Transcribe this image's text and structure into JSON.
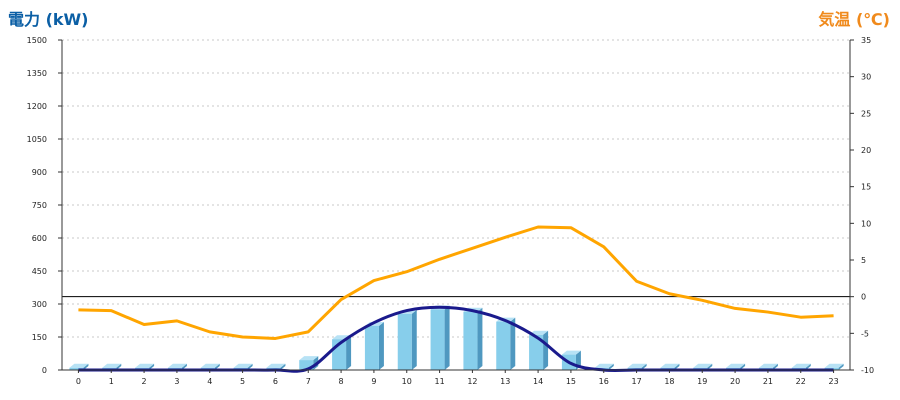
{
  "chart_data": {
    "type": "bar",
    "title": "",
    "left_axis": {
      "label": "電力 (kW)",
      "color": "#0b5fa5",
      "ylim": [
        0,
        1500
      ],
      "ticks": [
        0,
        150,
        300,
        450,
        600,
        750,
        900,
        1050,
        1200,
        1350,
        1500
      ]
    },
    "right_axis": {
      "label": "気温 (℃)",
      "color": "#f08a1c",
      "ylim": [
        -10,
        35
      ],
      "ticks": [
        -10,
        -5,
        0,
        5,
        10,
        15,
        20,
        25,
        30,
        35
      ]
    },
    "categories": [
      "0",
      "1",
      "2",
      "3",
      "4",
      "5",
      "6",
      "7",
      "8",
      "9",
      "10",
      "11",
      "12",
      "13",
      "14",
      "15",
      "16",
      "17",
      "18",
      "19",
      "20",
      "21",
      "22",
      "23"
    ],
    "grid": true,
    "series": [
      {
        "type": "bar",
        "axis": "left",
        "color": "#87ceeb",
        "values": [
          10,
          10,
          10,
          10,
          10,
          10,
          10,
          45,
          140,
          200,
          255,
          275,
          265,
          220,
          160,
          70,
          10,
          10,
          10,
          10,
          10,
          10,
          10,
          10
        ]
      },
      {
        "type": "line",
        "axis": "left",
        "color": "#1a1a8c",
        "values": [
          0,
          0,
          0,
          0,
          0,
          0,
          0,
          5,
          125,
          215,
          270,
          285,
          270,
          225,
          145,
          30,
          0,
          0,
          0,
          0,
          0,
          0,
          0,
          0
        ]
      },
      {
        "type": "line",
        "axis": "right",
        "color": "#ffa500",
        "values": [
          -1.8,
          -1.9,
          -3.8,
          -3.3,
          -4.8,
          -5.5,
          -5.7,
          -4.8,
          -0.4,
          2.2,
          3.4,
          5.1,
          6.6,
          8.1,
          9.5,
          9.4,
          6.8,
          2.1,
          0.4,
          -0.5,
          -1.6,
          -2.1,
          -2.8,
          -2.6
        ]
      }
    ],
    "reference_line": {
      "axis": "right",
      "value": 0,
      "color": "#000000"
    }
  }
}
